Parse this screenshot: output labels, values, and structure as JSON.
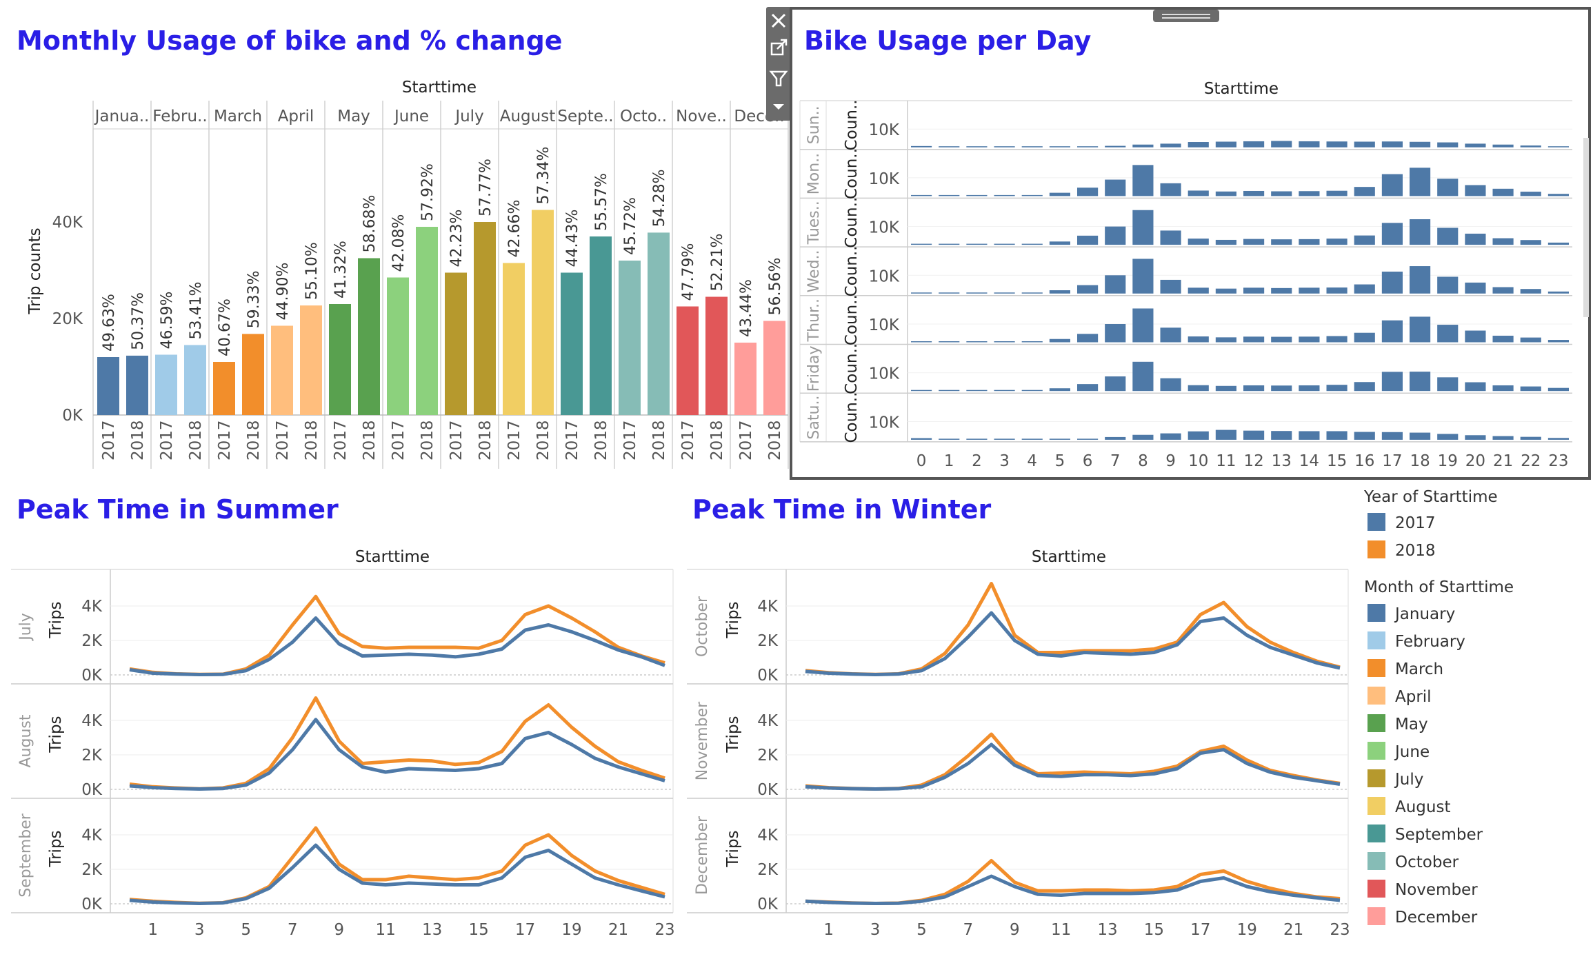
{
  "colors": {
    "title": "#2a1ee6",
    "y2017": "#4e79a7",
    "y2018": "#f28e2b",
    "dayBar": "#4e79a7",
    "months": [
      "#4e79a7",
      "#a0cbe8",
      "#f28e2b",
      "#ffbe7d",
      "#59a14f",
      "#8cd17d",
      "#b6992d",
      "#f1ce63",
      "#499894",
      "#86bcb6",
      "#e15759",
      "#ff9d9a"
    ]
  },
  "toolbar": {
    "close_icon": "close-icon",
    "popout_icon": "popout-icon",
    "filter_icon": "filter-icon",
    "menu_icon": "dropdown-icon"
  },
  "legend": {
    "year_title": "Year of Starttime",
    "years": [
      "2017",
      "2018"
    ],
    "month_title": "Month of Starttime",
    "months": [
      "January",
      "February",
      "March",
      "April",
      "May",
      "June",
      "July",
      "August",
      "September",
      "October",
      "November",
      "December"
    ]
  },
  "chart_data": [
    {
      "type": "bar",
      "title": "Monthly Usage of bike and % change",
      "column_header": "Starttime",
      "ylabel": "Trip counts",
      "ylim": [
        0,
        60000
      ],
      "yticks": [
        "0K",
        "20K",
        "40K"
      ],
      "month_headers": [
        "Janua..",
        "Febru..",
        "March",
        "April",
        "May",
        "June",
        "July",
        "August",
        "Septe..",
        "Octo..",
        "Nove..",
        "Dece.."
      ],
      "years": [
        "2017",
        "2018"
      ],
      "series": [
        {
          "name": "2017",
          "values": [
            12000,
            12500,
            11000,
            18500,
            23000,
            28500,
            29500,
            31500,
            29500,
            32000,
            22500,
            15000
          ],
          "labels": [
            "49.63%",
            "46.59%",
            "40.67%",
            "44.90%",
            "41.32%",
            "42.08%",
            "42.23%",
            "42.66%",
            "44.43%",
            "45.72%",
            "47.79%",
            "43.44%"
          ]
        },
        {
          "name": "2018",
          "values": [
            12300,
            14500,
            16800,
            22700,
            32500,
            39000,
            40000,
            42500,
            37000,
            37800,
            24500,
            19500
          ],
          "labels": [
            "50.37%",
            "53.41%",
            "59.33%",
            "55.10%",
            "58.68%",
            "57.92%",
            "57.77%",
            "57.34%",
            "55.57%",
            "54.28%",
            "52.21%",
            "56.56%"
          ]
        }
      ]
    },
    {
      "type": "bar",
      "title": "Bike Usage per Day",
      "column_header": "Starttime",
      "x": [
        0,
        1,
        2,
        3,
        4,
        5,
        6,
        7,
        8,
        9,
        10,
        11,
        12,
        13,
        14,
        15,
        16,
        17,
        18,
        19,
        20,
        21,
        22,
        23
      ],
      "ytick": "10K",
      "row_axis_label": "Coun..",
      "ylim": [
        0,
        20000
      ],
      "rows": [
        {
          "name": "Sun..",
          "values": [
            700,
            400,
            300,
            200,
            100,
            150,
            300,
            800,
            1500,
            2000,
            2900,
            3100,
            3300,
            3500,
            3300,
            3200,
            3100,
            3200,
            3000,
            2700,
            2000,
            1500,
            1000,
            500
          ]
        },
        {
          "name": "Mon..",
          "values": [
            300,
            150,
            100,
            80,
            100,
            1800,
            4600,
            9000,
            17000,
            7000,
            3000,
            2500,
            2800,
            2600,
            2700,
            2900,
            5000,
            12000,
            15500,
            9500,
            6000,
            4000,
            2400,
            1200
          ]
        },
        {
          "name": "Tues..",
          "values": [
            300,
            150,
            100,
            80,
            100,
            1800,
            5000,
            10000,
            19000,
            7800,
            3400,
            2700,
            3200,
            3000,
            3100,
            3400,
            5100,
            12000,
            14000,
            9300,
            6100,
            3600,
            2600,
            1200
          ]
        },
        {
          "name": "Wed..",
          "values": [
            300,
            150,
            100,
            80,
            100,
            1800,
            4600,
            10000,
            19000,
            7500,
            3200,
            2700,
            3200,
            3000,
            3200,
            3300,
            5000,
            12000,
            15000,
            9200,
            6000,
            3500,
            2500,
            1100
          ]
        },
        {
          "name": "Thur..",
          "values": [
            300,
            150,
            100,
            80,
            100,
            1800,
            4600,
            10000,
            18500,
            8000,
            3200,
            2700,
            3100,
            3000,
            3100,
            3400,
            5200,
            12000,
            14000,
            9600,
            6400,
            3600,
            2600,
            1300
          ]
        },
        {
          "name": "Friday",
          "values": [
            300,
            200,
            120,
            80,
            100,
            1500,
            3800,
            8000,
            16000,
            7000,
            3200,
            2800,
            3100,
            3000,
            3100,
            3400,
            4900,
            10500,
            10600,
            7500,
            4800,
            3100,
            2500,
            1700
          ]
        },
        {
          "name": "Satu..",
          "values": [
            900,
            500,
            300,
            200,
            100,
            200,
            400,
            1500,
            2700,
            3500,
            4600,
            5400,
            5000,
            4800,
            4700,
            4700,
            4300,
            4200,
            3900,
            3200,
            2500,
            2000,
            1600,
            1000
          ]
        }
      ]
    },
    {
      "type": "line",
      "title": "Peak Time in Summer",
      "column_header": "Starttime",
      "ylabel": "Trips",
      "x": [
        0,
        1,
        2,
        3,
        4,
        5,
        6,
        7,
        8,
        9,
        10,
        11,
        12,
        13,
        14,
        15,
        16,
        17,
        18,
        19,
        20,
        21,
        22,
        23
      ],
      "xticks": [
        1,
        3,
        5,
        7,
        9,
        11,
        13,
        15,
        17,
        19,
        21,
        23
      ],
      "yticks": [
        "0K",
        "2K",
        "4K"
      ],
      "ylim": [
        0,
        5000
      ],
      "panels": [
        {
          "name": "July",
          "series": [
            {
              "name": "2017",
              "values": [
                300,
                100,
                50,
                20,
                30,
                250,
                900,
                1900,
                3300,
                1800,
                1100,
                1150,
                1200,
                1150,
                1050,
                1200,
                1500,
                2600,
                2900,
                2500,
                2000,
                1450,
                1050,
                550
              ]
            },
            {
              "name": "2018",
              "values": [
                350,
                150,
                60,
                30,
                40,
                350,
                1150,
                2900,
                4550,
                2400,
                1650,
                1550,
                1600,
                1600,
                1600,
                1550,
                2000,
                3500,
                4000,
                3300,
                2500,
                1600,
                1100,
                700
              ]
            }
          ]
        },
        {
          "name": "August",
          "series": [
            {
              "name": "2017",
              "values": [
                200,
                100,
                50,
                20,
                50,
                250,
                950,
                2300,
                4050,
                2300,
                1300,
                1000,
                1200,
                1150,
                1100,
                1200,
                1500,
                2950,
                3300,
                2600,
                1800,
                1300,
                900,
                500
              ]
            },
            {
              "name": "2018",
              "values": [
                300,
                150,
                80,
                30,
                80,
                350,
                1200,
                3000,
                5300,
                2800,
                1500,
                1600,
                1700,
                1650,
                1450,
                1550,
                2200,
                3950,
                4900,
                3600,
                2500,
                1600,
                1100,
                650
              ]
            }
          ]
        },
        {
          "name": "September",
          "series": [
            {
              "name": "2017",
              "values": [
                200,
                100,
                50,
                20,
                50,
                300,
                900,
                2100,
                3400,
                2000,
                1200,
                1100,
                1200,
                1150,
                1100,
                1100,
                1500,
                2700,
                3100,
                2300,
                1500,
                1100,
                750,
                400
              ]
            },
            {
              "name": "2018",
              "values": [
                250,
                150,
                80,
                30,
                60,
                350,
                1000,
                2700,
                4400,
                2300,
                1400,
                1400,
                1600,
                1500,
                1400,
                1500,
                1900,
                3400,
                4000,
                2800,
                1900,
                1350,
                950,
                550
              ]
            }
          ]
        }
      ]
    },
    {
      "type": "line",
      "title": "Peak Time in Winter",
      "column_header": "Starttime",
      "ylabel": "Trips",
      "x": [
        0,
        1,
        2,
        3,
        4,
        5,
        6,
        7,
        8,
        9,
        10,
        11,
        12,
        13,
        14,
        15,
        16,
        17,
        18,
        19,
        20,
        21,
        22,
        23
      ],
      "xticks": [
        1,
        3,
        5,
        7,
        9,
        11,
        13,
        15,
        17,
        19,
        21,
        23
      ],
      "yticks": [
        "0K",
        "2K",
        "4K"
      ],
      "ylim": [
        0,
        5000
      ],
      "panels": [
        {
          "name": "October",
          "series": [
            {
              "name": "2017",
              "values": [
                200,
                100,
                50,
                20,
                50,
                250,
                950,
                2200,
                3600,
                2000,
                1200,
                1100,
                1300,
                1250,
                1200,
                1300,
                1750,
                3100,
                3300,
                2300,
                1600,
                1150,
                700,
                400
              ]
            },
            {
              "name": "2018",
              "values": [
                250,
                130,
                60,
                30,
                60,
                350,
                1250,
                2900,
                5300,
                2300,
                1300,
                1300,
                1400,
                1400,
                1400,
                1500,
                1900,
                3500,
                4200,
                2800,
                1900,
                1300,
                800,
                450
              ]
            }
          ]
        },
        {
          "name": "November",
          "series": [
            {
              "name": "2017",
              "values": [
                150,
                80,
                40,
                20,
                40,
                150,
                700,
                1500,
                2600,
                1400,
                800,
                750,
                850,
                850,
                800,
                900,
                1200,
                2100,
                2300,
                1500,
                1000,
                700,
                500,
                300
              ]
            },
            {
              "name": "2018",
              "values": [
                200,
                100,
                50,
                20,
                50,
                250,
                850,
                1950,
                3200,
                1600,
                900,
                950,
                1000,
                950,
                900,
                1050,
                1350,
                2200,
                2500,
                1700,
                1100,
                800,
                550,
                350
              ]
            }
          ]
        },
        {
          "name": "December",
          "series": [
            {
              "name": "2017",
              "values": [
                150,
                80,
                40,
                20,
                30,
                150,
                400,
                1000,
                1600,
                1000,
                550,
                500,
                600,
                600,
                600,
                650,
                800,
                1300,
                1500,
                1000,
                700,
                500,
                350,
                200
              ]
            },
            {
              "name": "2018",
              "values": [
                150,
                100,
                50,
                20,
                40,
                200,
                550,
                1300,
                2500,
                1250,
                750,
                750,
                800,
                800,
                750,
                800,
                1000,
                1700,
                1900,
                1300,
                900,
                600,
                400,
                300
              ]
            }
          ]
        }
      ]
    }
  ]
}
